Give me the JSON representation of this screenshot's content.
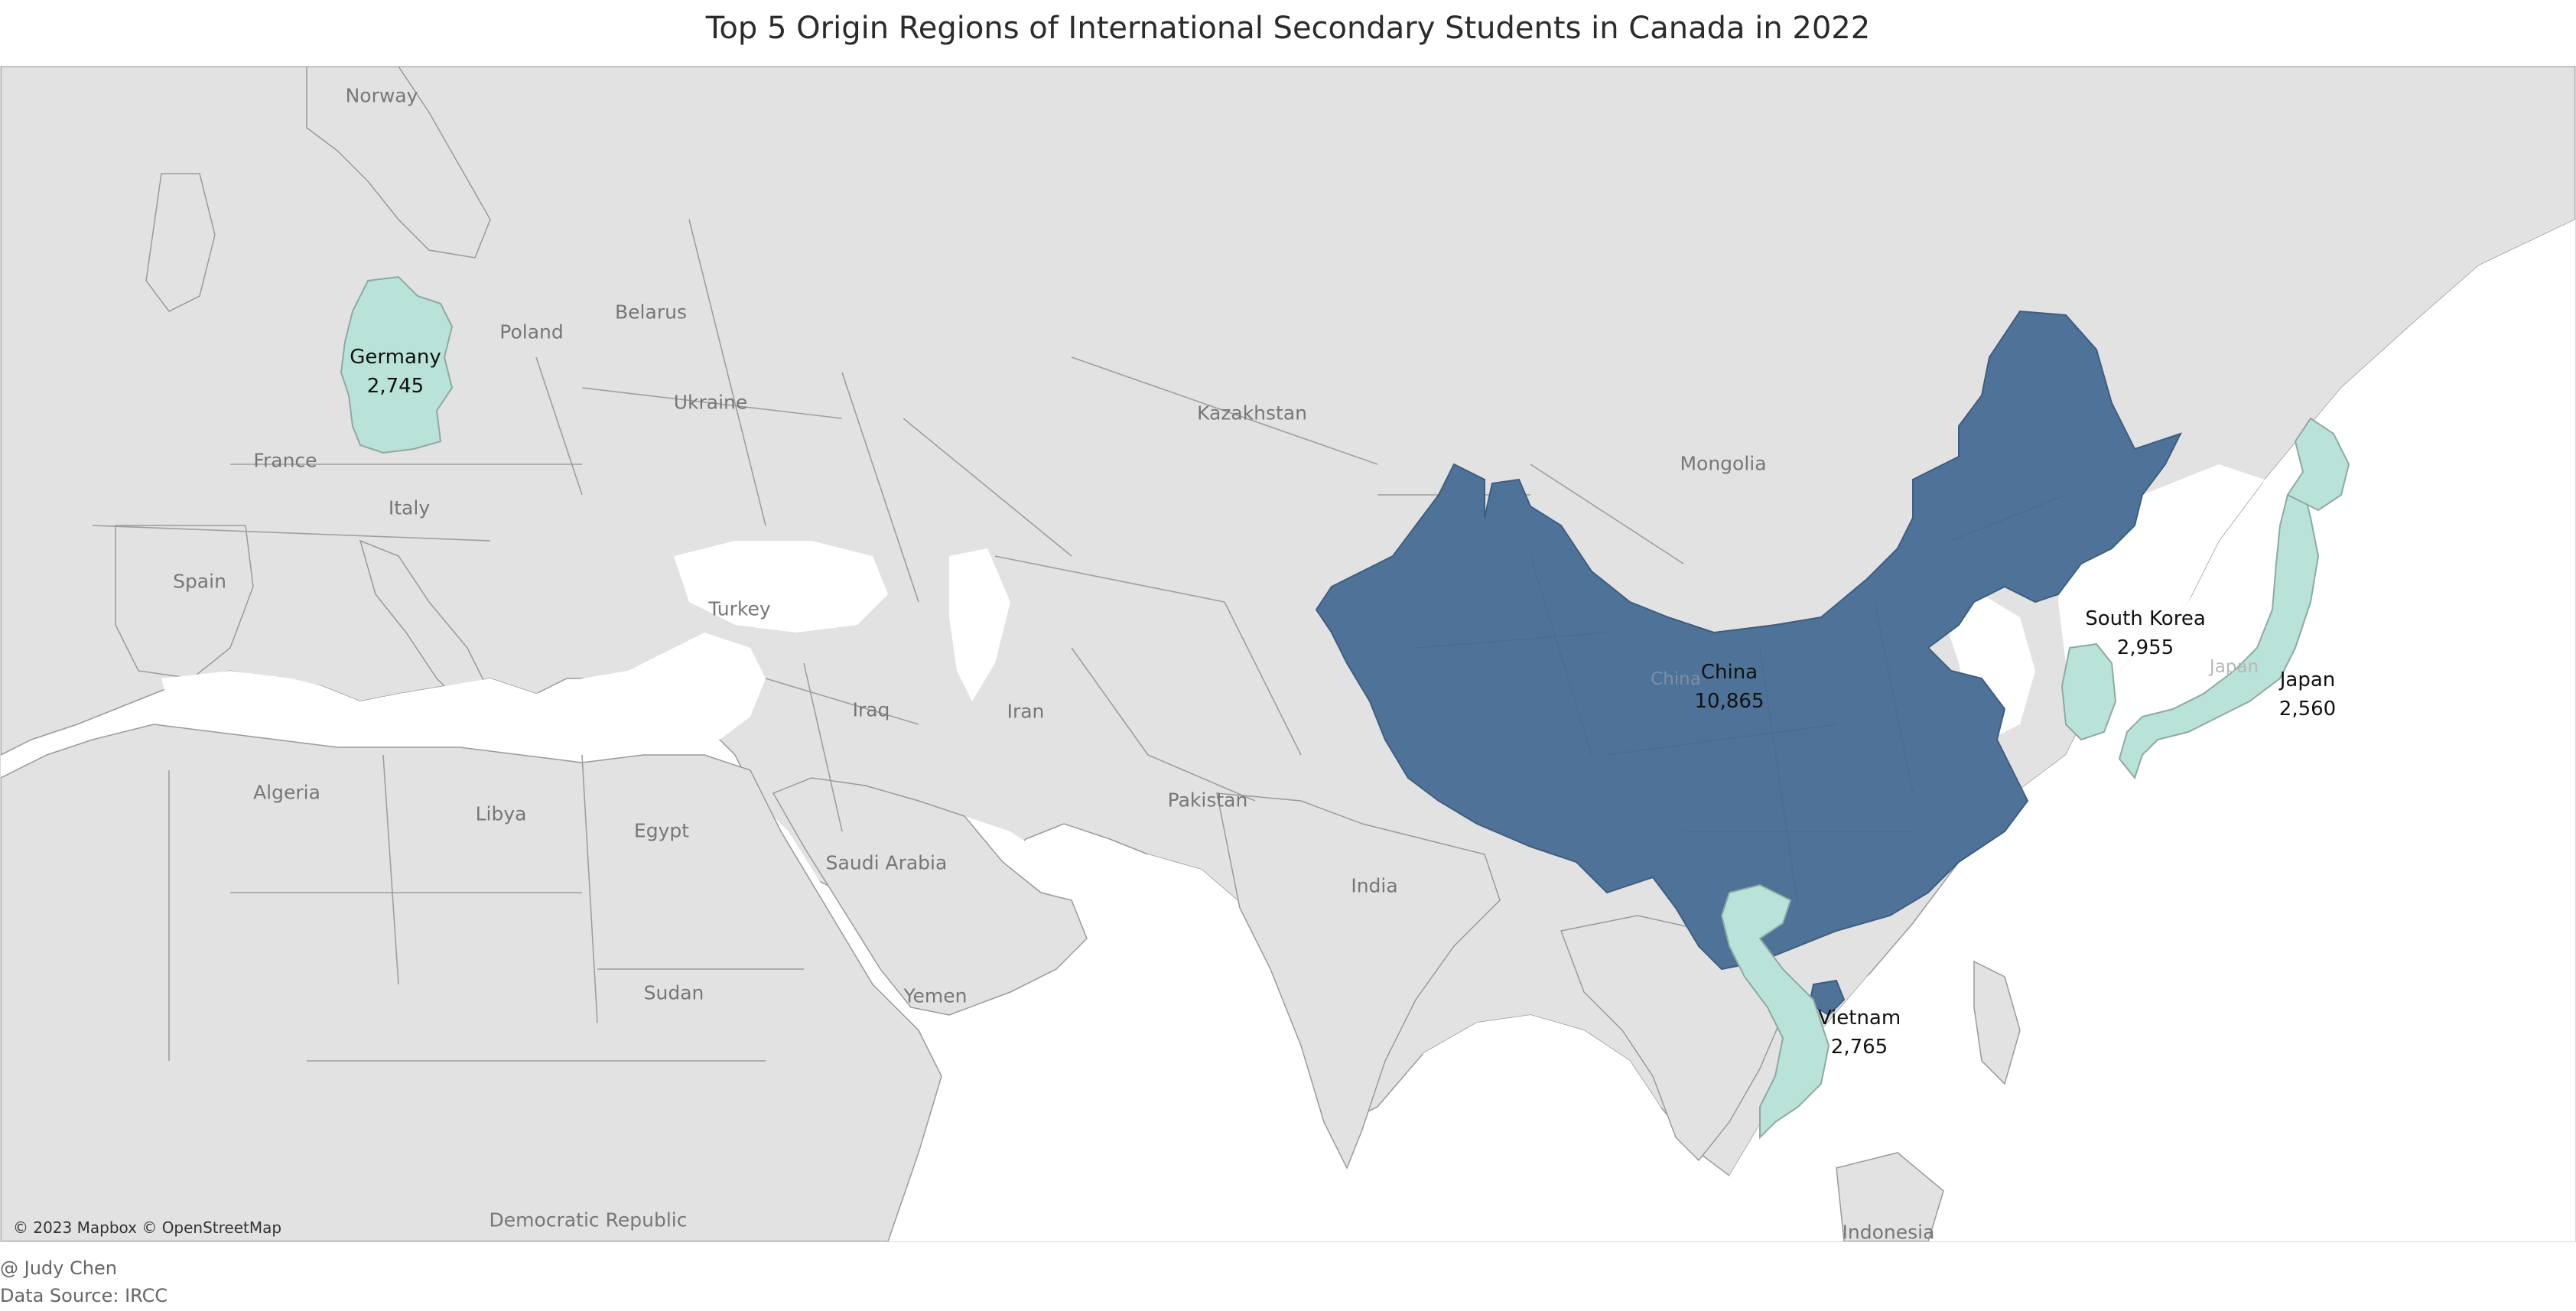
{
  "title": "Top 5 Origin Regions of International Secondary Students in Canada in 2022",
  "map": {
    "attribution": "© 2023 Mapbox © OpenStreetMap",
    "colors": {
      "highlight_high": "#4e7298",
      "highlight_low": "#b9e2d8",
      "land": "#e2e2e2",
      "water": "#ffffff"
    },
    "regions": [
      {
        "name": "China",
        "value": "10,865"
      },
      {
        "name": "South Korea",
        "value": "2,955"
      },
      {
        "name": "Vietnam",
        "value": "2,765"
      },
      {
        "name": "Germany",
        "value": "2,745"
      },
      {
        "name": "Japan",
        "value": "2,560"
      }
    ],
    "basemap_labels": {
      "norway": "Norway",
      "poland": "Poland",
      "belarus": "Belarus",
      "ukraine": "Ukraine",
      "france": "France",
      "italy": "Italy",
      "spain": "Spain",
      "turkey": "Turkey",
      "kazakhstan": "Kazakhstan",
      "mongolia": "Mongolia",
      "iraq": "Iraq",
      "iran": "Iran",
      "algeria": "Algeria",
      "libya": "Libya",
      "egypt": "Egypt",
      "saudi_arabia": "Saudi Arabia",
      "pakistan": "Pakistan",
      "india": "India",
      "sudan": "Sudan",
      "yemen": "Yemen",
      "democratic_republic": "Democratic Republic",
      "indonesia": "Indonesia",
      "china_faint": "China",
      "japan_faint": "Japan"
    }
  },
  "footer": {
    "author": "@ Judy Chen",
    "source": "Data Source: IRCC"
  }
}
